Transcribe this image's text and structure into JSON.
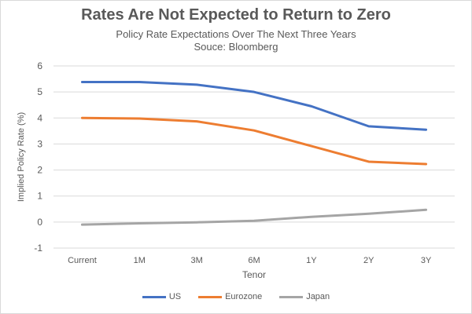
{
  "title": "Rates Are Not Expected to Return to Zero",
  "subtitle": "Policy Rate Expectations Over The Next Three Years",
  "source": "Souce: Bloomberg",
  "colors": {
    "US": "#4472c4",
    "Eurozone": "#ed7d31",
    "Japan": "#a5a5a5",
    "grid": "#d9d9d9",
    "text": "#595959"
  },
  "chart_data": {
    "type": "line",
    "title": "Rates Are Not Expected to Return to Zero",
    "xlabel": "Tenor",
    "ylabel": "Implied Policy Rate (%)",
    "ylim": [
      -1,
      6
    ],
    "yticks": [
      -1,
      0,
      1,
      2,
      3,
      4,
      5,
      6
    ],
    "grid": true,
    "legend_position": "bottom",
    "categories": [
      "Current",
      "1M",
      "3M",
      "6M",
      "1Y",
      "2Y",
      "3Y"
    ],
    "series": [
      {
        "name": "US",
        "color": "#4472c4",
        "values": [
          5.38,
          5.38,
          5.28,
          5.0,
          4.45,
          3.68,
          3.55
        ]
      },
      {
        "name": "Eurozone",
        "color": "#ed7d31",
        "values": [
          4.0,
          3.98,
          3.87,
          3.52,
          2.92,
          2.32,
          2.23
        ]
      },
      {
        "name": "Japan",
        "color": "#a5a5a5",
        "values": [
          -0.1,
          -0.05,
          -0.01,
          0.05,
          0.2,
          0.32,
          0.47
        ]
      }
    ]
  }
}
